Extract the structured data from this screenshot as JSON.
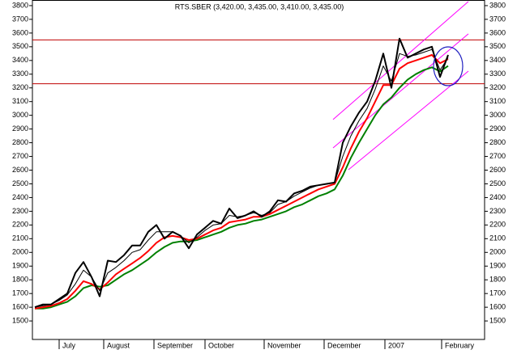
{
  "chart_data": {
    "type": "line",
    "title": "RTS.SBER (3,420.00, 3,435.00, 3,410.00, 3,435.00)",
    "x": [
      0,
      1,
      2,
      3,
      4,
      5,
      6,
      7,
      8,
      9,
      10,
      11,
      12,
      13,
      14,
      15,
      16,
      17,
      18,
      19,
      20,
      21,
      22,
      23,
      24,
      25,
      26,
      27,
      28,
      29,
      30,
      31,
      32,
      33,
      34,
      35,
      36,
      37,
      38,
      39,
      40,
      41,
      42,
      43,
      44,
      45,
      46,
      47,
      48,
      49,
      50,
      51
    ],
    "series": [
      {
        "color": "#008000",
        "width": 2,
        "values": [
          1590,
          1590,
          1600,
          1620,
          1640,
          1680,
          1740,
          1760,
          1750,
          1760,
          1800,
          1840,
          1870,
          1910,
          1950,
          2000,
          2040,
          2070,
          2080,
          2080,
          2090,
          2110,
          2130,
          2150,
          2180,
          2200,
          2210,
          2230,
          2240,
          2260,
          2280,
          2300,
          2330,
          2350,
          2380,
          2410,
          2430,
          2460,
          2560,
          2690,
          2800,
          2900,
          3000,
          3080,
          3130,
          3200,
          3260,
          3300,
          3330,
          3350,
          3320,
          3360
        ]
      },
      {
        "color": "#ff0000",
        "width": 2,
        "values": [
          1590,
          1600,
          1610,
          1630,
          1660,
          1720,
          1790,
          1770,
          1730,
          1780,
          1840,
          1880,
          1920,
          1960,
          2010,
          2070,
          2110,
          2120,
          2110,
          2090,
          2100,
          2130,
          2160,
          2180,
          2220,
          2230,
          2240,
          2260,
          2260,
          2280,
          2310,
          2340,
          2370,
          2400,
          2430,
          2460,
          2480,
          2500,
          2620,
          2760,
          2880,
          2980,
          3100,
          3220,
          3220,
          3340,
          3380,
          3400,
          3420,
          3440,
          3380,
          3410
        ]
      },
      {
        "color": "#000000",
        "width": 1,
        "values": [
          1600,
          1610,
          1620,
          1650,
          1690,
          1770,
          1870,
          1820,
          1720,
          1850,
          1890,
          1940,
          2000,
          2020,
          2090,
          2150,
          2150,
          2150,
          2120,
          2070,
          2110,
          2160,
          2200,
          2210,
          2270,
          2260,
          2270,
          2290,
          2270,
          2290,
          2350,
          2370,
          2410,
          2440,
          2470,
          2490,
          2500,
          2510,
          2700,
          2850,
          2960,
          3050,
          3190,
          3360,
          3250,
          3450,
          3430,
          3440,
          3460,
          3480,
          3330,
          3420
        ]
      },
      {
        "color": "#000000",
        "width": 2,
        "values": [
          1600,
          1620,
          1620,
          1660,
          1700,
          1850,
          1930,
          1820,
          1680,
          1940,
          1930,
          1980,
          2050,
          2050,
          2150,
          2200,
          2100,
          2150,
          2120,
          2030,
          2130,
          2180,
          2230,
          2210,
          2320,
          2250,
          2270,
          2300,
          2260,
          2300,
          2380,
          2370,
          2430,
          2450,
          2480,
          2490,
          2500,
          2510,
          2800,
          2920,
          3020,
          3100,
          3250,
          3450,
          3200,
          3560,
          3420,
          3450,
          3480,
          3500,
          3280,
          3440
        ]
      }
    ],
    "xlim": [
      -0.3,
      55.5
    ],
    "xticks": [
      {
        "value": 3,
        "label": "July"
      },
      {
        "value": 8.5,
        "label": "August"
      },
      {
        "value": 14.7,
        "label": "September"
      },
      {
        "value": 21,
        "label": "October"
      },
      {
        "value": 28.3,
        "label": "November"
      },
      {
        "value": 35.7,
        "label": "December"
      },
      {
        "value": 43.2,
        "label": "2007"
      },
      {
        "value": 50.2,
        "label": "February"
      }
    ],
    "ylim": [
      1365,
      3841
    ],
    "yticks": [
      1500,
      1600,
      1700,
      1800,
      1900,
      2000,
      2100,
      2200,
      2300,
      2400,
      2500,
      2600,
      2700,
      2800,
      2900,
      3000,
      3100,
      3200,
      3300,
      3400,
      3500,
      3600,
      3700,
      3800
    ],
    "hlines": [
      {
        "y": 3550,
        "color": "#c00000"
      },
      {
        "y": 3230,
        "color": "#c00000"
      }
    ],
    "trend_lines": [
      {
        "x": [
          36.8,
          53.5
        ],
        "y": [
          2969,
          3830
        ],
        "color": "#ff00ff"
      },
      {
        "x": [
          36.8,
          53.5
        ],
        "y": [
          2762,
          3594
        ],
        "color": "#ff00ff"
      },
      {
        "x": [
          38.7,
          53.5
        ],
        "y": [
          2603,
          3322
        ],
        "color": "#ff00ff"
      }
    ]
  }
}
